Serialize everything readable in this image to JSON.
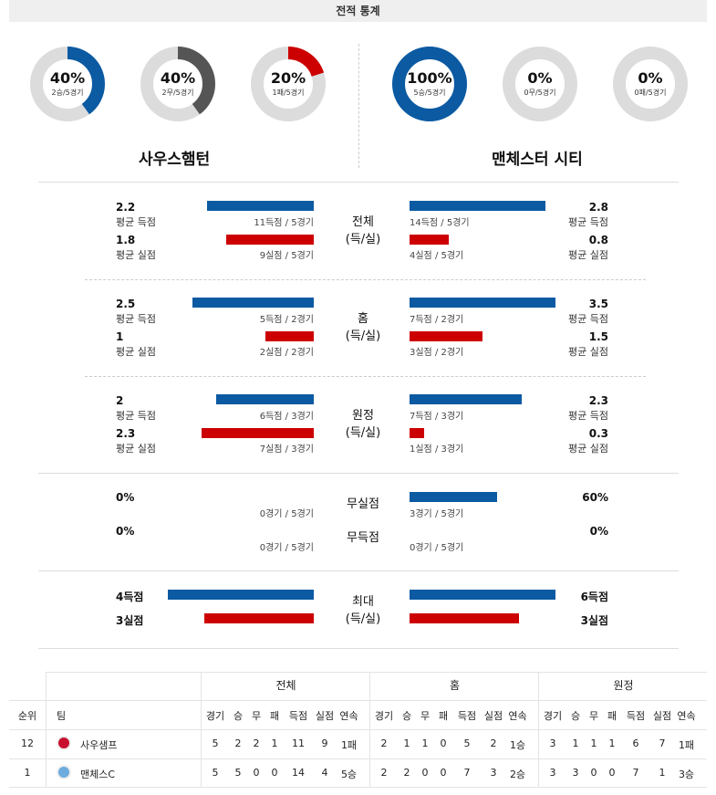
{
  "header": {
    "title": "전적 통계"
  },
  "teams": {
    "home": "사우스햄턴",
    "away": "맨체스터 시티"
  },
  "donuts": {
    "home": [
      {
        "pct": "40%",
        "sub": "2승/5경기",
        "value": 0.4,
        "color": "#0b5aa2"
      },
      {
        "pct": "40%",
        "sub": "2무/5경기",
        "value": 0.4,
        "color": "#555555"
      },
      {
        "pct": "20%",
        "sub": "1패/5경기",
        "value": 0.2,
        "color": "#cc0000"
      }
    ],
    "away": [
      {
        "pct": "100%",
        "sub": "5승/5경기",
        "value": 1.0,
        "color": "#0b5aa2"
      },
      {
        "pct": "0%",
        "sub": "0무/5경기",
        "value": 0.0,
        "color": "#555555"
      },
      {
        "pct": "0%",
        "sub": "0패/5경기",
        "value": 0.0,
        "color": "#cc0000"
      }
    ]
  },
  "labels": {
    "avg_for": "평균 득점",
    "avg_against": "평균 실점"
  },
  "sections": {
    "overall": {
      "title1": "전체",
      "title2": "(득/실)",
      "home_for": "2.2",
      "home_for_cap": "11득점 / 5경기",
      "home_against": "1.8",
      "home_against_cap": "9실점 / 5경기",
      "away_for": "2.8",
      "away_for_cap": "14득점 / 5경기",
      "away_against": "0.8",
      "away_against_cap": "4실점 / 5경기"
    },
    "home": {
      "title1": "홈",
      "title2": "(득/실)",
      "home_for": "2.5",
      "home_for_cap": "5득점 / 2경기",
      "home_against": "1",
      "home_against_cap": "2실점 / 2경기",
      "away_for": "3.5",
      "away_for_cap": "7득점 / 2경기",
      "away_against": "1.5",
      "away_against_cap": "3실점 / 2경기"
    },
    "away": {
      "title1": "원정",
      "title2": "(득/실)",
      "home_for": "2",
      "home_for_cap": "6득점 / 3경기",
      "home_against": "2.3",
      "home_against_cap": "7실점 / 3경기",
      "away_for": "2.3",
      "away_for_cap": "7득점 / 3경기",
      "away_against": "0.3",
      "away_against_cap": "1실점 / 3경기"
    },
    "clean": {
      "title_cs": "무실점",
      "title_ns": "무득점",
      "home_cs": "0%",
      "home_cs_cap": "0경기 / 5경기",
      "home_ns": "0%",
      "home_ns_cap": "0경기 / 5경기",
      "away_cs": "60%",
      "away_cs_cap": "3경기 / 5경기",
      "away_ns": "0%",
      "away_ns_cap": "0경기 / 5경기"
    },
    "max": {
      "title1": "최대",
      "title2": "(득/실)",
      "home_for": "4득점",
      "home_against": "3실점",
      "away_for": "6득점",
      "away_against": "3실점"
    }
  },
  "table": {
    "groups": [
      "전체",
      "홈",
      "원정"
    ],
    "headers": {
      "rank": "순위",
      "team": "팀"
    },
    "cols": [
      "경기",
      "승",
      "무",
      "패",
      "득점",
      "실점",
      "연속"
    ],
    "rows": [
      {
        "rank": "12",
        "team": "사우샘프",
        "overall": [
          "5",
          "2",
          "2",
          "1",
          "11",
          "9",
          "1패"
        ],
        "home": [
          "2",
          "1",
          "1",
          "0",
          "5",
          "2",
          "1승"
        ],
        "away": [
          "3",
          "1",
          "1",
          "1",
          "6",
          "7",
          "1패"
        ]
      },
      {
        "rank": "1",
        "team": "맨체스C",
        "overall": [
          "5",
          "5",
          "0",
          "0",
          "14",
          "4",
          "5승"
        ],
        "home": [
          "2",
          "2",
          "0",
          "0",
          "7",
          "3",
          "2승"
        ],
        "away": [
          "3",
          "3",
          "0",
          "0",
          "7",
          "1",
          "3승"
        ]
      }
    ]
  }
}
